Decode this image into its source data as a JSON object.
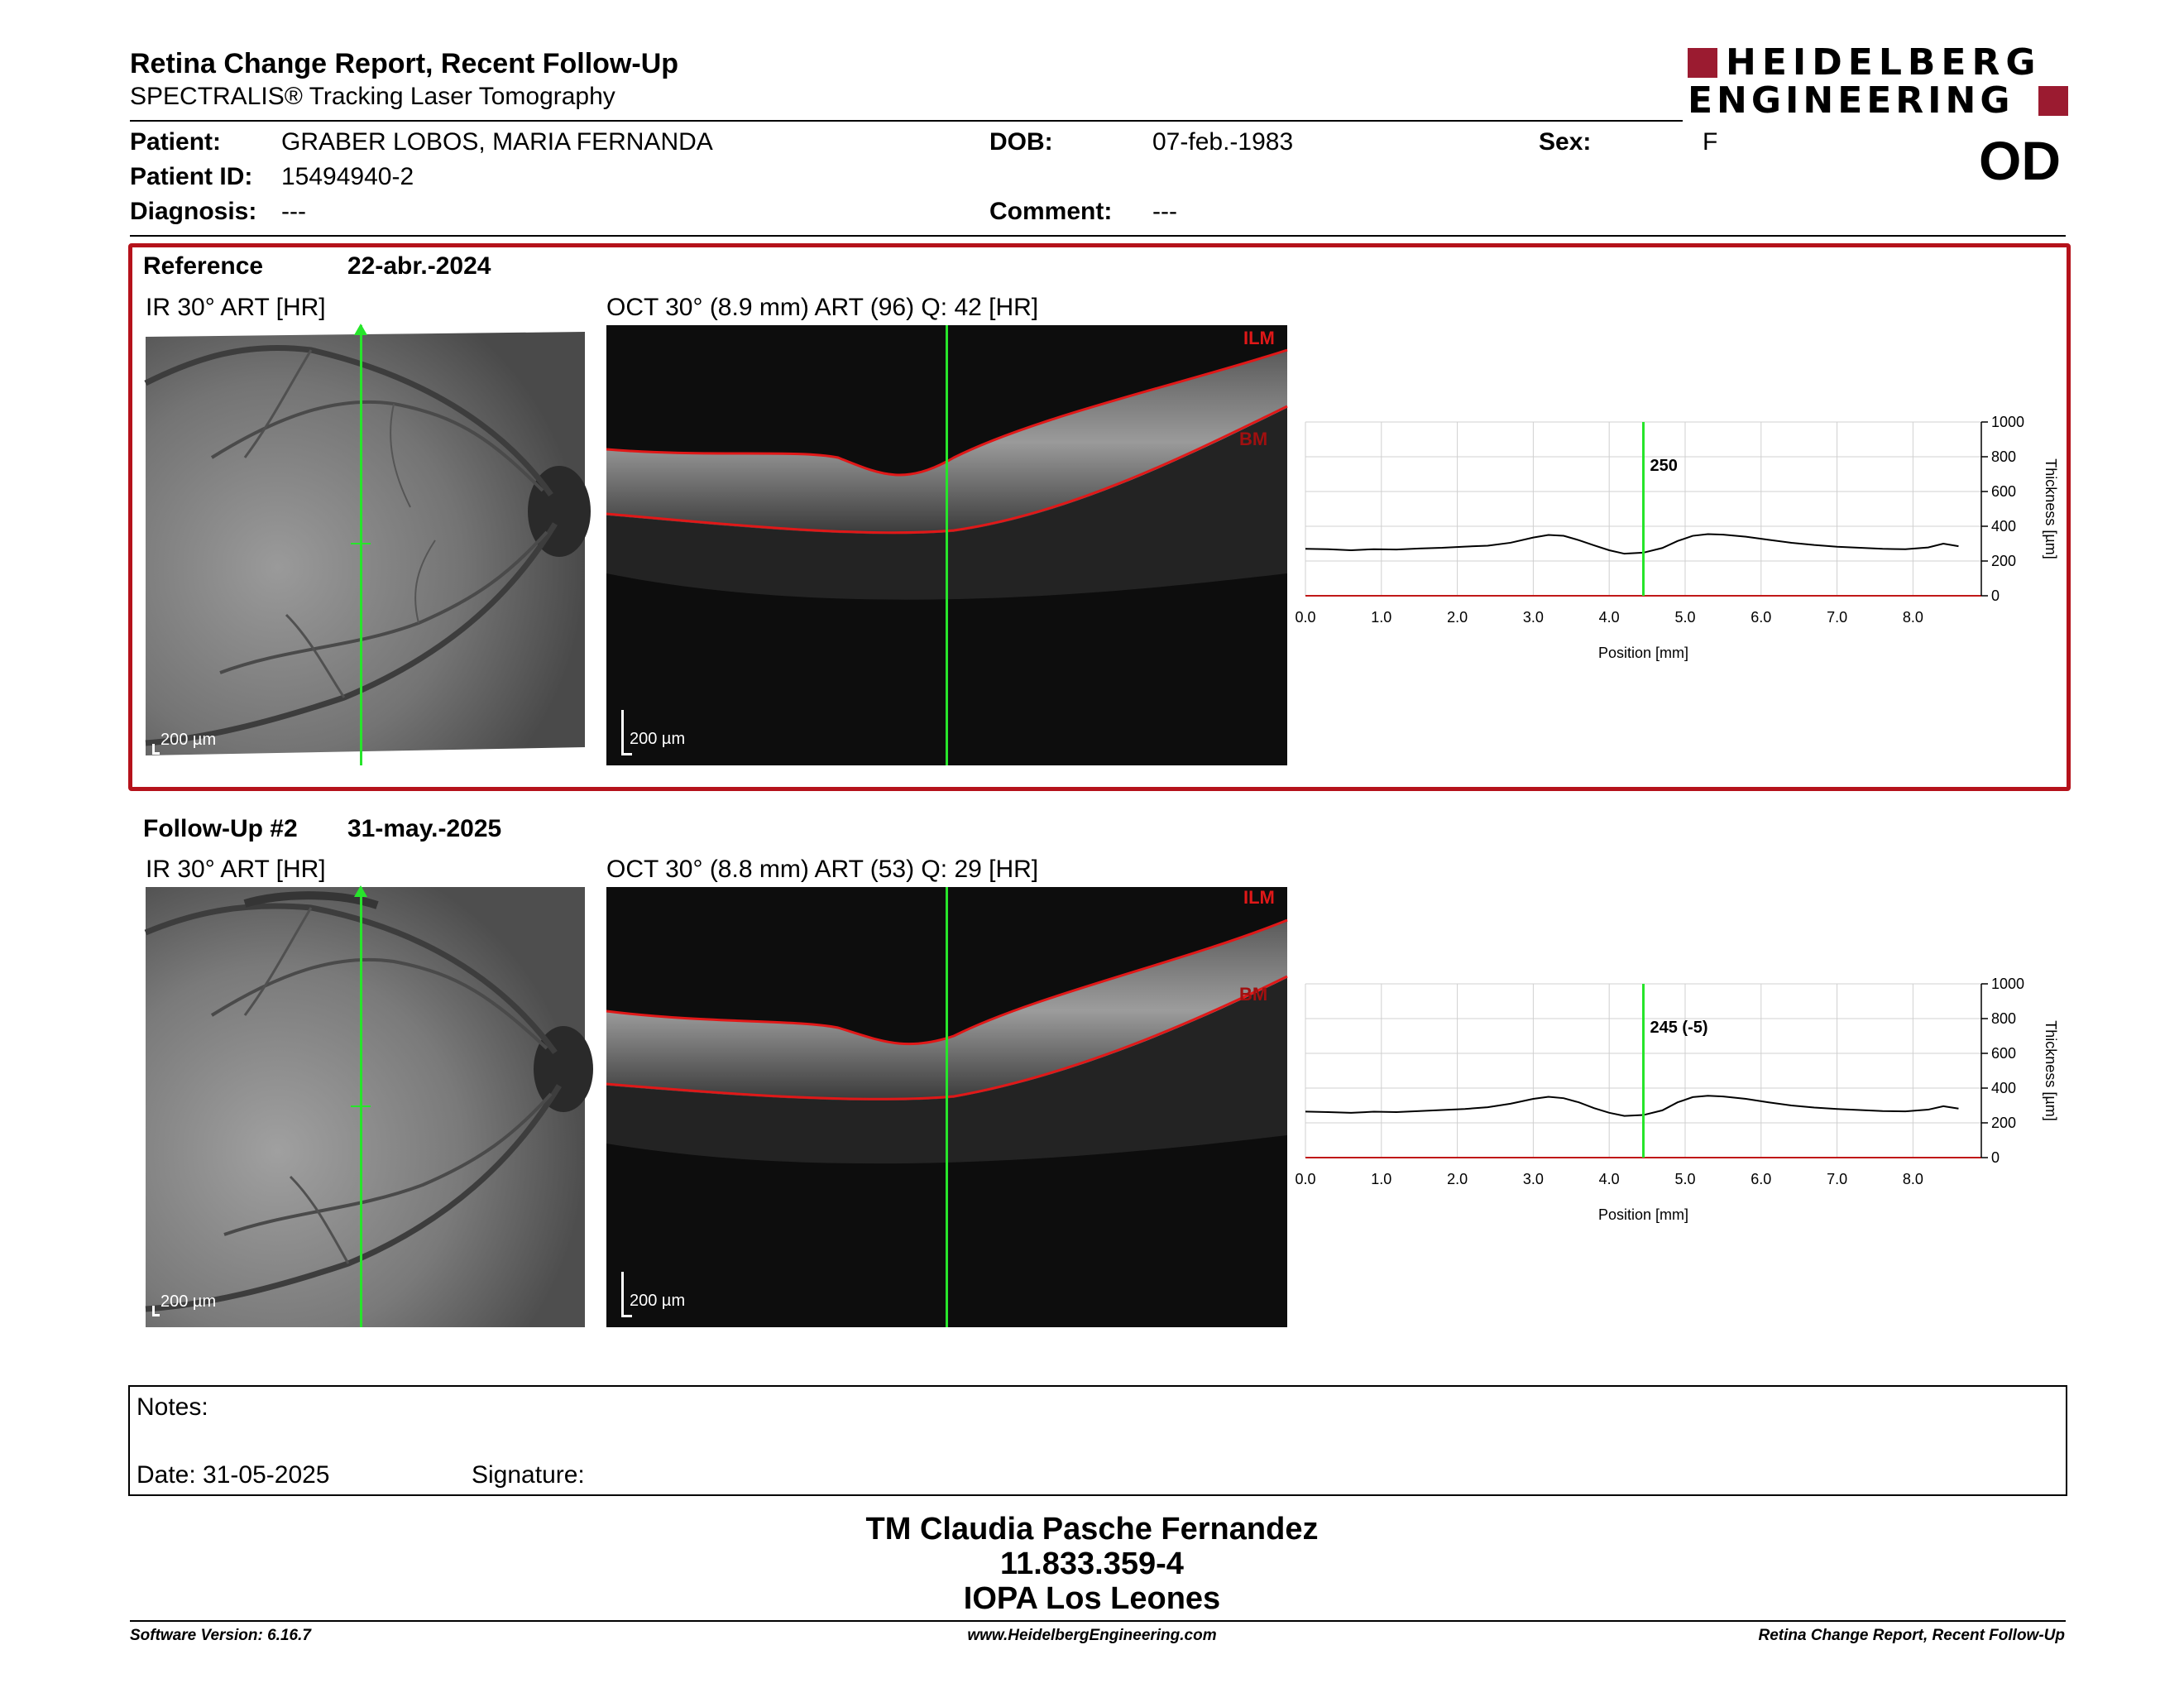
{
  "header": {
    "title": "Retina Change Report, Recent Follow-Up",
    "subtitle": "SPECTRALIS® Tracking Laser Tomography",
    "logo_line1": "HEIDELBERG",
    "logo_line2": "ENGINEERING",
    "eye": "OD"
  },
  "patient": {
    "patient_label": "Patient:",
    "patient_name": "GRABER LOBOS, MARIA FERNANDA",
    "id_label": "Patient ID:",
    "id_value": "15494940-2",
    "diagnosis_label": "Diagnosis:",
    "diagnosis_value": "---",
    "dob_label": "DOB:",
    "dob_value": "07-feb.-1983",
    "comment_label": "Comment:",
    "comment_value": "---",
    "sex_label": "Sex:",
    "sex_value": "F"
  },
  "exams": [
    {
      "label": "Reference",
      "date": "22-abr.-2024",
      "ir_caption": "IR 30° ART [HR]",
      "oct_caption": "OCT 30° (8.9 mm) ART (96) Q: 42 [HR]",
      "scale_text": "200 µm",
      "ilm": "ILM",
      "bm": "BM",
      "cursor_value": "250",
      "border_color": "#b5121b"
    },
    {
      "label": "Follow-Up #2",
      "date": "31-may.-2025",
      "ir_caption": "IR 30° ART [HR]",
      "oct_caption": "OCT 30° (8.8 mm) ART (53) Q: 29 [HR]",
      "scale_text": "200 µm",
      "ilm": "ILM",
      "bm": "BM",
      "cursor_value": "245 (-5)"
    }
  ],
  "chart_data": [
    {
      "type": "line",
      "title": "",
      "xlabel": "Position [mm]",
      "ylabel": "Thickness [µm]",
      "xlim": [
        0,
        8.9
      ],
      "ylim": [
        0,
        1000
      ],
      "x_ticks": [
        "0.0",
        "1.0",
        "2.0",
        "3.0",
        "4.0",
        "5.0",
        "6.0",
        "7.0",
        "8.0"
      ],
      "y_ticks": [
        "0",
        "200",
        "400",
        "600",
        "800",
        "1000"
      ],
      "cursor_x": 4.45,
      "cursor_label": "250",
      "grid": true,
      "series": [
        {
          "x": [
            0.0,
            0.3,
            0.6,
            0.9,
            1.2,
            1.5,
            1.8,
            2.1,
            2.4,
            2.7,
            3.0,
            3.2,
            3.4,
            3.6,
            3.8,
            4.0,
            4.2,
            4.45,
            4.7,
            4.9,
            5.1,
            5.3,
            5.5,
            5.8,
            6.1,
            6.4,
            6.7,
            7.0,
            7.3,
            7.6,
            7.9,
            8.2,
            8.4,
            8.6
          ],
          "y": [
            270,
            268,
            262,
            268,
            266,
            272,
            276,
            283,
            288,
            305,
            335,
            350,
            345,
            320,
            290,
            262,
            242,
            248,
            275,
            315,
            345,
            355,
            352,
            340,
            322,
            305,
            292,
            282,
            276,
            270,
            268,
            278,
            300,
            285
          ]
        }
      ]
    },
    {
      "type": "line",
      "title": "",
      "xlabel": "Position [mm]",
      "ylabel": "Thickness [µm]",
      "xlim": [
        0,
        8.9
      ],
      "ylim": [
        0,
        1000
      ],
      "x_ticks": [
        "0.0",
        "1.0",
        "2.0",
        "3.0",
        "4.0",
        "5.0",
        "6.0",
        "7.0",
        "8.0"
      ],
      "y_ticks": [
        "0",
        "200",
        "400",
        "600",
        "800",
        "1000"
      ],
      "cursor_x": 4.45,
      "cursor_label": "245 (-5)",
      "grid": true,
      "series": [
        {
          "x": [
            0.0,
            0.3,
            0.6,
            0.9,
            1.2,
            1.5,
            1.8,
            2.1,
            2.4,
            2.7,
            3.0,
            3.2,
            3.4,
            3.6,
            3.8,
            4.0,
            4.2,
            4.45,
            4.7,
            4.9,
            5.1,
            5.3,
            5.5,
            5.8,
            6.1,
            6.4,
            6.7,
            7.0,
            7.3,
            7.6,
            7.9,
            8.2,
            8.4,
            8.6
          ],
          "y": [
            265,
            262,
            258,
            264,
            262,
            268,
            274,
            280,
            290,
            310,
            338,
            350,
            342,
            318,
            285,
            258,
            240,
            245,
            272,
            318,
            348,
            356,
            352,
            338,
            318,
            300,
            288,
            280,
            274,
            268,
            266,
            276,
            296,
            282
          ]
        }
      ]
    }
  ],
  "notes": {
    "notes_label": "Notes:",
    "date_label": "Date: 31-05-2025",
    "signature_label": "Signature:"
  },
  "signature_block": {
    "name": "TM Claudia Pasche Fernandez",
    "id": "11.833.359-4",
    "place": "IOPA Los Leones"
  },
  "footer": {
    "software": "Software Version: 6.16.7",
    "website": "www.HeidelbergEngineering.com",
    "report_name": "Retina Change Report, Recent Follow-Up"
  },
  "colors": {
    "brand_red": "#9b1b30",
    "frame_red": "#b5121b",
    "scan_green": "#27e52b",
    "segment_red": "#e01818"
  }
}
